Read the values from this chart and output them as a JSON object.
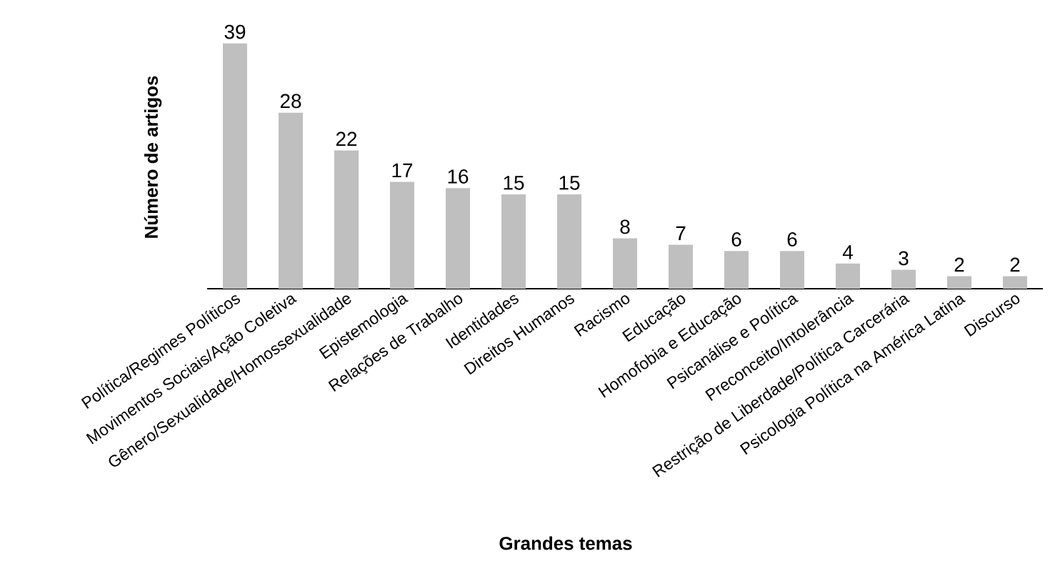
{
  "chart_data": {
    "type": "bar",
    "xlabel": "Grandes temas",
    "ylabel": "Número de artigos",
    "categories": [
      "Política/Regimes Políticos",
      "Movimentos Sociais/Ação Coletiva",
      "Gênero/Sexualidade/Homossexualidade",
      "Epistemologia",
      "Relações de Trabalho",
      "Identidades",
      "Direitos Humanos",
      "Racismo",
      "Educação",
      "Homofobia e Educação",
      "Psicanálise e Política",
      "Preconceito/Intolerância",
      "Restrição de Liberdade/Política Carcerária",
      "Psicologia Política na América Latina",
      "Discurso"
    ],
    "values": [
      39,
      28,
      22,
      17,
      16,
      15,
      15,
      8,
      7,
      6,
      6,
      4,
      3,
      2,
      2
    ],
    "color": "#bfbfbf",
    "data_labels": true
  }
}
